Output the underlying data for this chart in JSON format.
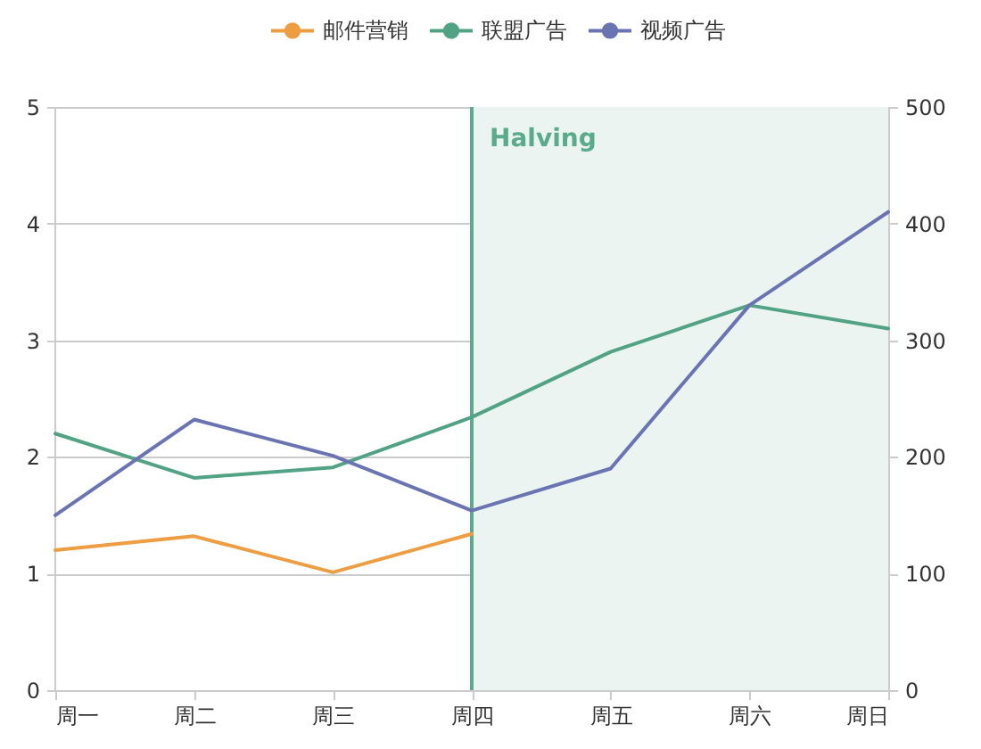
{
  "chart_data": {
    "type": "line",
    "categories": [
      "周一",
      "周二",
      "周三",
      "周四",
      "周五",
      "周六",
      "周日"
    ],
    "series": [
      {
        "name": "邮件营销",
        "color": "#ee9d42",
        "axis": "y2",
        "values": [
          120,
          132,
          101,
          134,
          null,
          null,
          null
        ]
      },
      {
        "name": "联盟广告",
        "color": "#52a385",
        "axis": "y2",
        "values": [
          220,
          182,
          191,
          234,
          290,
          330,
          310
        ]
      },
      {
        "name": "视频广告",
        "color": "#6a74b3",
        "axis": "y2",
        "values": [
          150,
          232,
          201,
          154,
          190,
          330,
          410
        ]
      }
    ],
    "ylim": [
      0,
      5
    ],
    "yticks": [
      0,
      1,
      2,
      3,
      4,
      5
    ],
    "y2lim": [
      0,
      500
    ],
    "y2ticks": [
      0,
      100,
      200,
      300,
      400,
      500
    ],
    "ref_lines": [
      {
        "axis": "x",
        "value": "周四",
        "label": "Halving",
        "color": "#5aaa8c"
      }
    ],
    "bands": [
      {
        "axis": "x",
        "from": "周四",
        "to": "周日",
        "color": "#ebf4f0"
      }
    ],
    "grid": "y",
    "legend": "top",
    "marker": "none"
  }
}
